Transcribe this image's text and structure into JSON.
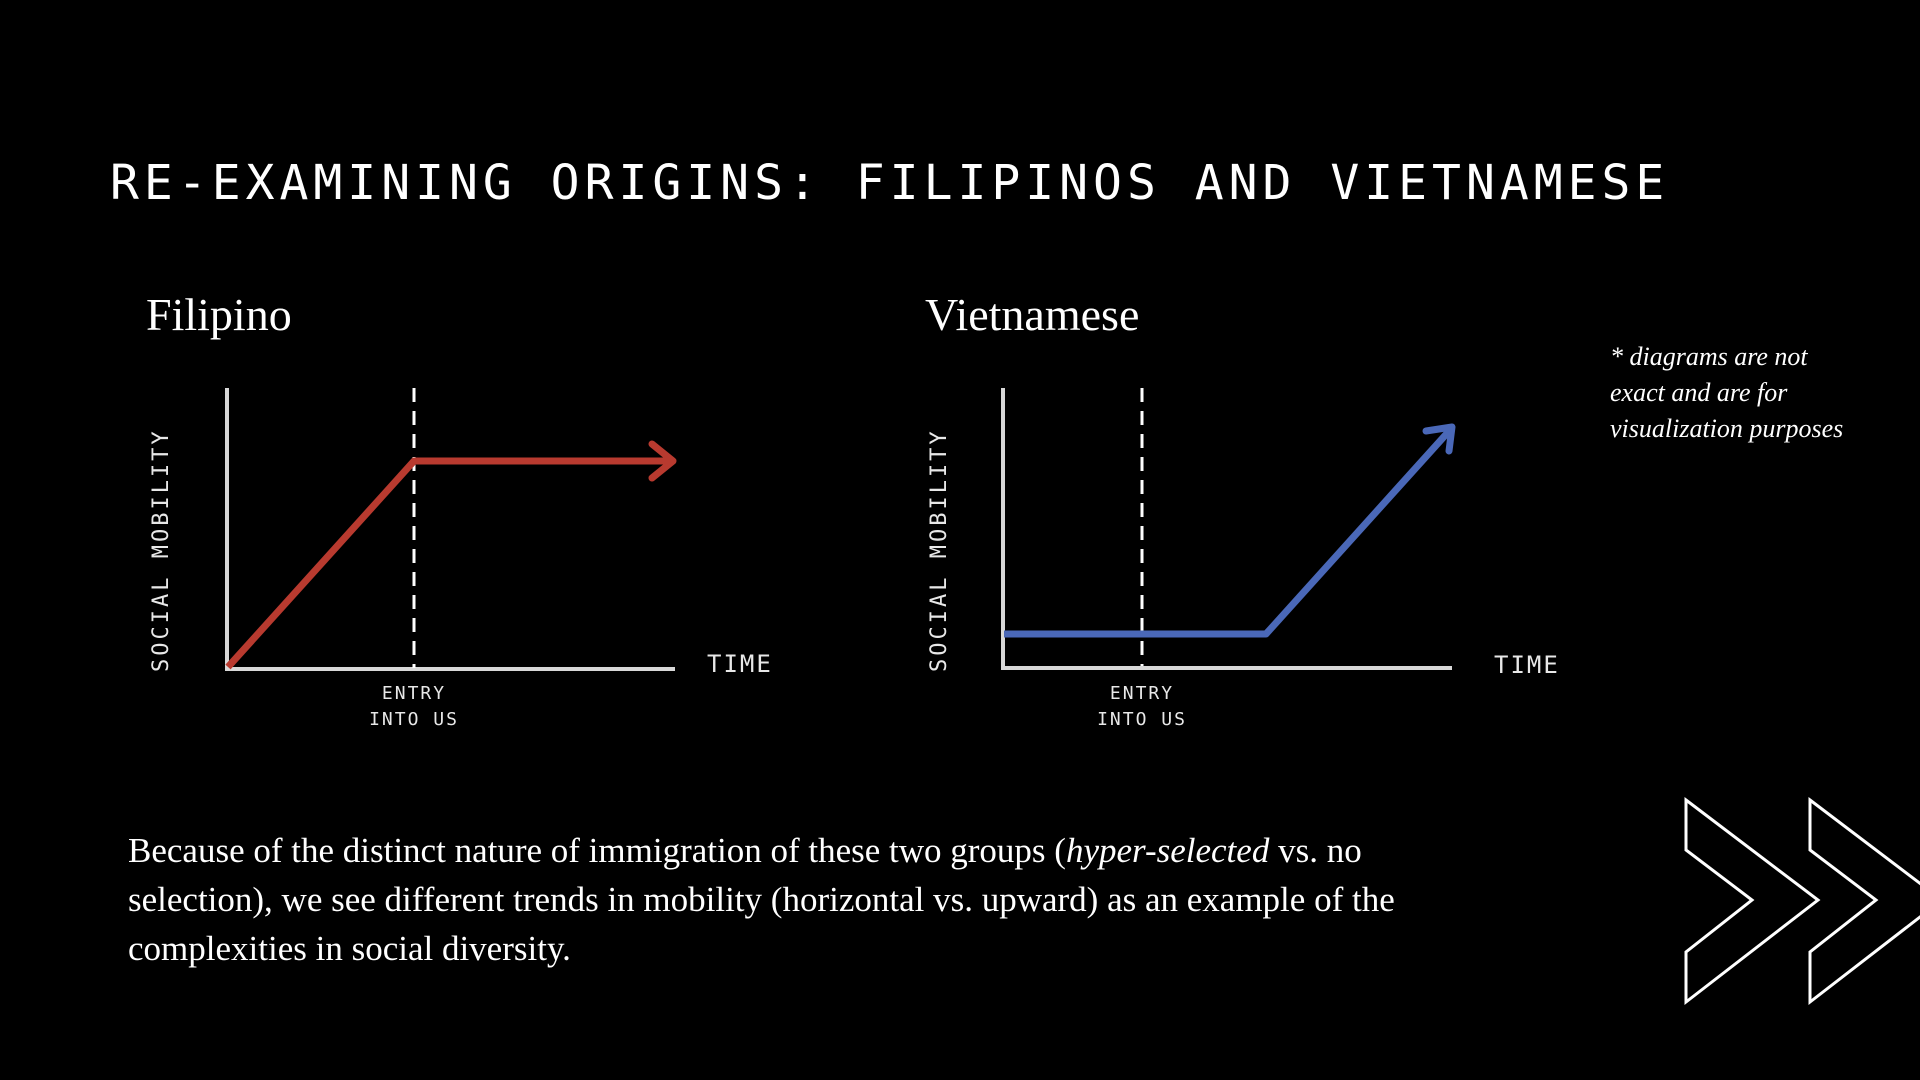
{
  "slide": {
    "title": "RE-EXAMINING ORIGINS: FILIPINOS AND VIETNAMESE"
  },
  "diagrams": {
    "filipino": {
      "title": "Filipino",
      "y_axis_label": "SOCIAL MOBILITY",
      "x_axis_label": "TIME",
      "marker_label_line1": "ENTRY",
      "marker_label_line2": "INTO US",
      "line_color": "#b83a2f"
    },
    "vietnamese": {
      "title": "Vietnamese",
      "y_axis_label": "SOCIAL MOBILITY",
      "x_axis_label": "TIME",
      "marker_label_line1": "ENTRY",
      "marker_label_line2": "INTO US",
      "line_color": "#4a68b8"
    }
  },
  "note": "* diagrams are not exact and are for visualization purposes",
  "body": {
    "part1": "Because of the distinct nature of immigration of these two groups (",
    "emphasis": "hyper-selected",
    "part2": " vs. no selection), we see different trends in mobility (horizontal vs. upward) as an example of the complexities in social diversity."
  },
  "decor": {
    "icon": "double-chevron-right-icon",
    "color": "#ffffff"
  }
}
